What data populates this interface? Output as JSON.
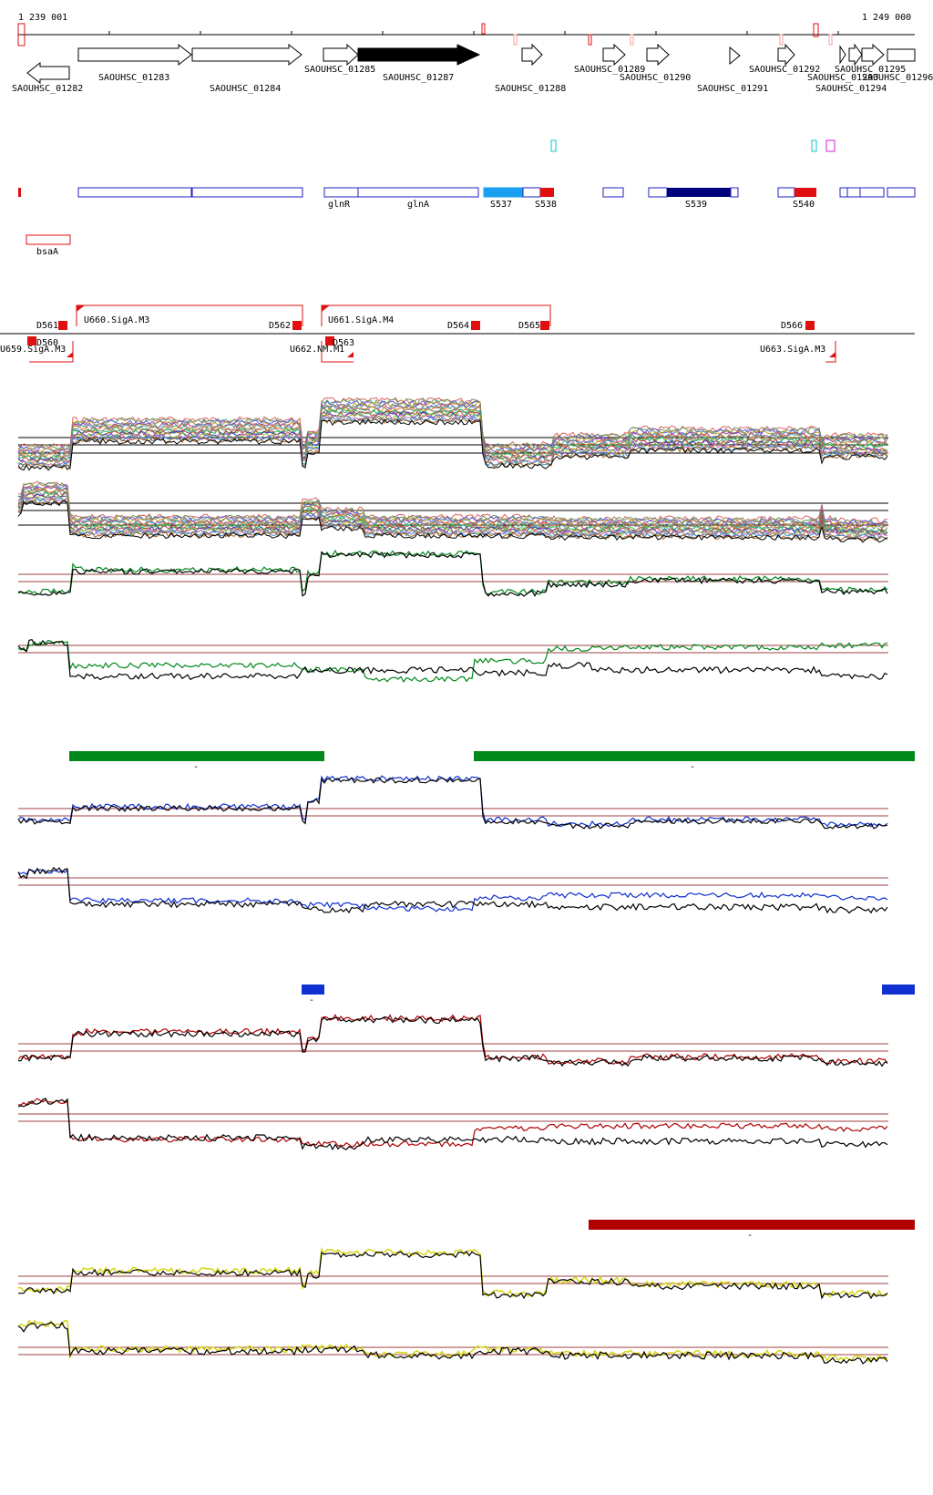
{
  "coords": {
    "start_label": "1 239 001",
    "end_label": "1 249 000",
    "start": 1239001,
    "end": 1249000
  },
  "colors": {
    "red": "#e01010",
    "blue": "#2020c0",
    "light_blue": "#1aa0f0",
    "navy": "#00007a",
    "cyan": "#00c8d0",
    "magenta": "#d020d0",
    "green": "#00881a",
    "dark_red": "#b00000",
    "bright_blue": "#1030d0",
    "yellow": "#d8d820",
    "brown": "#a04040",
    "black": "#000000"
  },
  "gene_labels": [
    "SAOUHSC_01282",
    "SAOUHSC_01283",
    "SAOUHSC_01284",
    "SAOUHSC_01285",
    "SAOUHSC_01287",
    "SAOUHSC_01288",
    "SAOUHSC_01289",
    "SAOUHSC_01290",
    "SAOUHSC_01291",
    "SAOUHSC_01292",
    "SAOUHSC_01295",
    "SAOUHSC_01293",
    "SAOUHSC_01296",
    "SAOUHSC_01294"
  ],
  "feature_labels": [
    "glnR",
    "glnA",
    "S537",
    "S538",
    "S539",
    "S540",
    "bsaA"
  ],
  "tu_labels": [
    "D561",
    "U660.SigA.M3",
    "D562",
    "U661.SigA.M4",
    "D564",
    "D565",
    "D566",
    "D560",
    "U659.SigA.M3",
    "D563",
    "U662.NM.M1",
    "U663.SigA.M3"
  ],
  "bar_labels": [
    "-",
    "-",
    "-",
    "-"
  ]
}
